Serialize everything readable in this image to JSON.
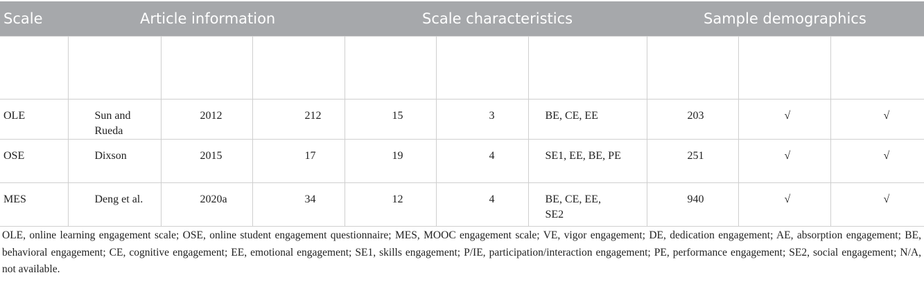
{
  "header": {
    "cells": [
      "Scale",
      "Article information",
      "Scale characteristics",
      "Sample demographics"
    ]
  },
  "table": {
    "rows": [
      [
        "OLE",
        "Sun and Rueda",
        "2012",
        "212",
        "15",
        "3",
        "BE, CE, EE",
        "203",
        "√",
        "√"
      ],
      [
        "OSE",
        "Dixson",
        "2015",
        "17",
        "19",
        "4",
        "SE1, EE, BE, PE",
        "251",
        "√",
        "√"
      ],
      [
        "MES",
        "Deng et al.",
        "2020a",
        "34",
        "12",
        "4",
        "BE, CE, EE, SE2",
        "940",
        "√",
        "√"
      ]
    ]
  },
  "footnote": "OLE, online learning engagement scale; OSE, online student engagement questionnaire; MES, MOOC engagement scale; VE, vigor engagement; DE, dedication engagement; AE, absorption engagement; BE, behavioral engagement; CE, cognitive engagement; EE, emotional engagement; SE1, skills engagement; P/IE, participation/interaction engagement; PE, performance engagement; SE2, social engagement; N/A, not available."
}
